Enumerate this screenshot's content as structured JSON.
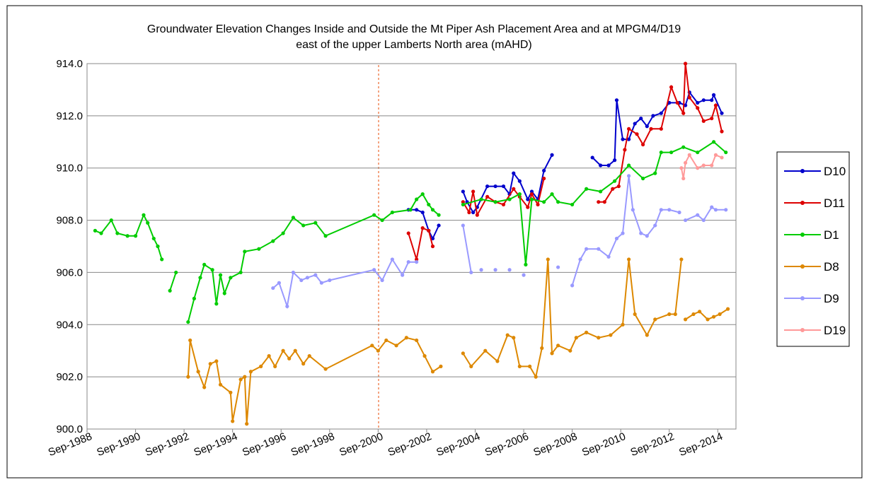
{
  "chart_data": {
    "type": "line",
    "title": "Groundwater Elevation Changes Inside and Outside the Mt Piper Ash Placement Area and at MPGM4/D19",
    "subtitle": "east of the upper Lamberts North area (mAHD)",
    "xlim": [
      "1988-09",
      "2015-06"
    ],
    "xticks": [
      {
        "value": "1988-09",
        "label": "Sep-1988"
      },
      {
        "value": "1990-09",
        "label": "Sep-1990"
      },
      {
        "value": "1992-09",
        "label": "Sep-1992"
      },
      {
        "value": "1994-09",
        "label": "Sep-1994"
      },
      {
        "value": "1996-09",
        "label": "Sep-1996"
      },
      {
        "value": "1998-09",
        "label": "Sep-1998"
      },
      {
        "value": "2000-09",
        "label": "Sep-2000"
      },
      {
        "value": "2002-09",
        "label": "Sep-2002"
      },
      {
        "value": "2004-09",
        "label": "Sep-2004"
      },
      {
        "value": "2006-09",
        "label": "Sep-2006"
      },
      {
        "value": "2008-09",
        "label": "Sep-2008"
      },
      {
        "value": "2010-09",
        "label": "Sep-2010"
      },
      {
        "value": "2012-09",
        "label": "Sep-2012"
      },
      {
        "value": "2014-09",
        "label": "Sep-2014"
      }
    ],
    "ylim": [
      900,
      914
    ],
    "yticks": [
      {
        "value": 900,
        "label": "900.0"
      },
      {
        "value": 902,
        "label": "902.0"
      },
      {
        "value": 904,
        "label": "904.0"
      },
      {
        "value": 906,
        "label": "906.0"
      },
      {
        "value": 908,
        "label": "908.0"
      },
      {
        "value": 910,
        "label": "910.0"
      },
      {
        "value": 912,
        "label": "912.0"
      },
      {
        "value": 914,
        "label": "914.0"
      }
    ],
    "grid": true,
    "legend": "right",
    "series": [
      {
        "name": "D10",
        "color": "#0000cc",
        "x": [
          "2001-12",
          "2002-04",
          "2002-07",
          "2002-10",
          "2002-12",
          "2003-03",
          "2003-09",
          "2004-03",
          "2004-05",
          "2004-08",
          "2004-10",
          "2005-03",
          "2005-07",
          "2005-11",
          "2006-02",
          "2006-04",
          "2006-07",
          "2006-11",
          "2007-01",
          "2007-04",
          "2007-07",
          "2007-11",
          "2008-09",
          "2009-07",
          "2009-11",
          "2010-03",
          "2010-06",
          "2010-07",
          "2010-10",
          "2011-01",
          "2011-04",
          "2011-07",
          "2011-10",
          "2012-01",
          "2012-05",
          "2012-09",
          "2013-02",
          "2013-05",
          "2013-07",
          "2013-11",
          "2014-02",
          "2014-06",
          "2014-07",
          "2014-11"
        ],
        "values": [
          908.4,
          908.4,
          908.3,
          907.6,
          907.3,
          907.8,
          null,
          909.1,
          908.7,
          908.3,
          908.5,
          909.3,
          909.3,
          909.3,
          909.0,
          909.8,
          909.5,
          908.8,
          909.1,
          908.8,
          909.9,
          910.5,
          null,
          910.4,
          910.1,
          910.1,
          910.3,
          912.6,
          911.1,
          911.1,
          911.7,
          911.9,
          911.6,
          912.0,
          912.1,
          912.5,
          912.5,
          912.4,
          912.9,
          912.5,
          912.6,
          912.6,
          912.8,
          912.1
        ]
      },
      {
        "name": "D11",
        "color": "#dd0000",
        "x": [
          "2001-12",
          "2002-04",
          "2002-07",
          "2002-10",
          "2002-12",
          "2003-09",
          "2004-03",
          "2004-06",
          "2004-08",
          "2004-10",
          "2005-03",
          "2005-07",
          "2005-11",
          "2006-04",
          "2006-07",
          "2006-11",
          "2007-01",
          "2007-04",
          "2007-07",
          "2008-09",
          "2009-10",
          "2010-01",
          "2010-05",
          "2010-08",
          "2010-11",
          "2011-01",
          "2011-05",
          "2011-08",
          "2011-12",
          "2012-05",
          "2012-10",
          "2013-01",
          "2013-04",
          "2013-05",
          "2013-07",
          "2013-11",
          "2014-02",
          "2014-06",
          "2014-08",
          "2014-11"
        ],
        "values": [
          907.5,
          906.5,
          907.7,
          907.6,
          907.0,
          null,
          908.7,
          908.3,
          909.1,
          908.2,
          908.9,
          908.7,
          908.6,
          909.2,
          908.9,
          908.5,
          909.0,
          908.6,
          909.6,
          null,
          908.7,
          908.7,
          909.2,
          909.3,
          910.7,
          911.5,
          911.3,
          910.9,
          911.5,
          911.5,
          913.1,
          912.5,
          912.1,
          914.0,
          912.7,
          912.3,
          911.8,
          911.9,
          912.4,
          911.4
        ]
      },
      {
        "name": "D1",
        "color": "#00cc00",
        "x": [
          "1989-01",
          "1989-04",
          "1989-09",
          "1989-12",
          "1990-05",
          "1990-09",
          "1991-01",
          "1991-03",
          "1991-06",
          "1991-08",
          "1991-10",
          "1991-12",
          "1992-02",
          "1992-05",
          "1992-08",
          "1992-11",
          "1993-02",
          "1993-05",
          "1993-07",
          "1993-11",
          "1994-01",
          "1994-03",
          "1994-05",
          "1994-08",
          "1995-01",
          "1995-03",
          "1995-10",
          "1996-05",
          "1996-10",
          "1997-03",
          "1997-08",
          "1998-02",
          "1998-07",
          "2000-07",
          "2000-11",
          "2001-04",
          "2002-01",
          "2002-04",
          "2002-07",
          "2002-10",
          "2002-12",
          "2003-03",
          "2003-09",
          "2004-03",
          "2004-12",
          "2005-07",
          "2006-02",
          "2006-07",
          "2006-10",
          "2007-01",
          "2007-07",
          "2007-11",
          "2008-02",
          "2008-09",
          "2009-04",
          "2009-11",
          "2010-06",
          "2011-01",
          "2011-08",
          "2012-02",
          "2012-05",
          "2012-10",
          "2013-04",
          "2013-11",
          "2014-07",
          "2015-01"
        ],
        "values": [
          907.6,
          907.5,
          908.0,
          907.5,
          907.4,
          907.4,
          908.2,
          907.9,
          907.3,
          907.0,
          906.5,
          null,
          905.3,
          906.0,
          null,
          904.1,
          905.0,
          905.8,
          906.3,
          906.1,
          904.8,
          905.9,
          905.2,
          905.8,
          906.0,
          906.8,
          906.9,
          907.2,
          907.5,
          908.1,
          907.8,
          907.9,
          907.4,
          908.2,
          908.0,
          908.3,
          908.4,
          908.8,
          909.0,
          908.6,
          908.4,
          908.2,
          null,
          908.6,
          908.8,
          908.7,
          908.8,
          909.0,
          906.3,
          908.8,
          908.7,
          909.0,
          908.7,
          908.6,
          909.2,
          909.1,
          909.5,
          910.1,
          909.6,
          909.8,
          910.6,
          910.6,
          910.8,
          910.6,
          911.0,
          910.6
        ]
      },
      {
        "name": "D8",
        "color": "#dd8800",
        "x": [
          "1992-11",
          "1992-12",
          "1993-04",
          "1993-07",
          "1993-10",
          "1994-01",
          "1994-03",
          "1994-08",
          "1994-09",
          "1995-01",
          "1995-03",
          "1995-04",
          "1995-06",
          "1995-11",
          "1996-03",
          "1996-06",
          "1996-10",
          "1997-01",
          "1997-04",
          "1997-08",
          "1997-11",
          "1998-07",
          "2000-06",
          "2000-09",
          "2001-01",
          "2001-06",
          "2001-11",
          "2002-04",
          "2002-08",
          "2002-12",
          "2003-04",
          "2003-09",
          "2004-03",
          "2004-07",
          "2005-02",
          "2005-08",
          "2006-01",
          "2006-04",
          "2006-07",
          "2006-12",
          "2007-03",
          "2007-06",
          "2007-09",
          "2007-11",
          "2008-02",
          "2008-08",
          "2008-11",
          "2009-04",
          "2009-10",
          "2010-04",
          "2010-10",
          "2011-01",
          "2011-04",
          "2011-10",
          "2012-02",
          "2012-09",
          "2012-12",
          "2013-03",
          "2013-04",
          "2013-05",
          "2013-09",
          "2013-12",
          "2014-04",
          "2014-07",
          "2014-10",
          "2015-02"
        ],
        "values": [
          902.0,
          903.4,
          902.2,
          901.6,
          902.5,
          902.6,
          901.7,
          901.4,
          900.3,
          901.9,
          902.0,
          900.2,
          902.2,
          902.4,
          902.8,
          902.4,
          903.0,
          902.7,
          903.0,
          902.5,
          902.8,
          902.3,
          903.2,
          903.0,
          903.4,
          903.2,
          903.5,
          903.4,
          902.8,
          902.2,
          902.4,
          null,
          902.9,
          902.4,
          903.0,
          902.6,
          903.6,
          903.5,
          902.4,
          902.4,
          902.0,
          903.1,
          906.5,
          902.9,
          903.2,
          903.0,
          903.5,
          903.7,
          903.5,
          903.6,
          904.0,
          906.5,
          904.4,
          903.6,
          904.2,
          904.4,
          904.4,
          906.5,
          null,
          904.2,
          904.4,
          904.5,
          904.2,
          904.3,
          904.4,
          904.6
        ]
      },
      {
        "name": "D9",
        "color": "#9999ff",
        "x": [
          "1996-05",
          "1996-08",
          "1996-12",
          "1997-03",
          "1997-07",
          "1997-10",
          "1998-02",
          "1998-05",
          "1998-09",
          "2000-07",
          "2000-11",
          "2001-04",
          "2001-09",
          "2001-12",
          "2002-04",
          "2003-06",
          "2004-03",
          "2004-07",
          "2004-09",
          "2004-12",
          "2005-04",
          "2005-07",
          "2005-10",
          "2006-02",
          "2006-05",
          "2006-09",
          "2007-06",
          "2008-02",
          "2008-05",
          "2008-09",
          "2009-01",
          "2009-04",
          "2009-10",
          "2010-03",
          "2010-07",
          "2010-10",
          "2011-01",
          "2011-03",
          "2011-07",
          "2011-10",
          "2012-02",
          "2012-05",
          "2012-09",
          "2013-02",
          "2013-03",
          "2013-05",
          "2013-11",
          "2014-02",
          "2014-06",
          "2014-08",
          "2015-01"
        ],
        "values": [
          905.4,
          905.6,
          904.7,
          906.0,
          905.7,
          905.8,
          905.9,
          905.6,
          905.7,
          906.1,
          905.7,
          906.5,
          905.9,
          906.4,
          906.4,
          null,
          907.8,
          906.0,
          null,
          906.1,
          null,
          906.1,
          null,
          906.1,
          null,
          905.9,
          null,
          906.2,
          null,
          905.5,
          906.5,
          906.9,
          906.9,
          906.6,
          907.3,
          907.5,
          909.7,
          908.4,
          907.5,
          907.4,
          907.8,
          908.4,
          908.4,
          908.3,
          null,
          908.0,
          908.2,
          908.0,
          908.5,
          908.4,
          908.4
        ]
      },
      {
        "name": "D19",
        "color": "#ff9999",
        "x": [
          "2013-03",
          "2013-04",
          "2013-05",
          "2013-07",
          "2013-11",
          "2014-02",
          "2014-06",
          "2014-08",
          "2014-11"
        ],
        "values": [
          910.0,
          909.6,
          910.2,
          910.5,
          910.0,
          910.1,
          910.1,
          910.5,
          910.4
        ]
      }
    ]
  }
}
